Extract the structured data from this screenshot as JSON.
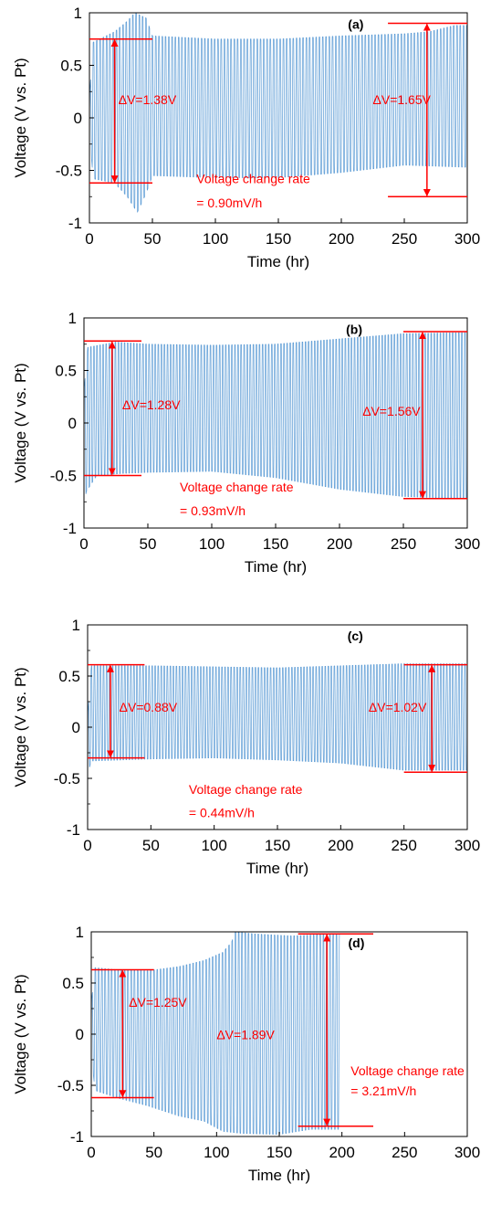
{
  "chart_data": [
    {
      "type": "line",
      "panel_label": "(a)",
      "xlabel": "Time (hr)",
      "ylabel": "Voltage (V vs. Pt)",
      "xlim": [
        0,
        300
      ],
      "ylim": [
        -1,
        1
      ],
      "xticks": [
        0,
        50,
        100,
        150,
        200,
        250,
        300
      ],
      "yticks": [
        "1",
        "0.5",
        "0",
        "-0.5",
        "-1"
      ],
      "series": [
        {
          "color": "#5b9bd5",
          "cycle_period_hr": 2.6,
          "t_end": 300,
          "upper_envelope": [
            [
              0,
              0.2
            ],
            [
              3,
              0.72
            ],
            [
              20,
              0.82
            ],
            [
              30,
              0.92
            ],
            [
              36,
              1.0
            ],
            [
              45,
              0.95
            ],
            [
              50,
              0.78
            ],
            [
              100,
              0.75
            ],
            [
              150,
              0.75
            ],
            [
              200,
              0.78
            ],
            [
              250,
              0.8
            ],
            [
              270,
              0.82
            ],
            [
              290,
              0.88
            ],
            [
              300,
              0.88
            ]
          ],
          "lower_envelope": [
            [
              0,
              -0.15
            ],
            [
              3,
              -0.58
            ],
            [
              20,
              -0.62
            ],
            [
              30,
              -0.75
            ],
            [
              38,
              -0.9
            ],
            [
              45,
              -0.72
            ],
            [
              50,
              -0.55
            ],
            [
              100,
              -0.57
            ],
            [
              150,
              -0.57
            ],
            [
              200,
              -0.52
            ],
            [
              250,
              -0.45
            ],
            [
              300,
              -0.47
            ]
          ]
        }
      ],
      "annotations": [
        {
          "text": "ΔV=1.38V",
          "x": 23,
          "y": 0.13
        },
        {
          "text": "ΔV=1.65V",
          "x": 225,
          "y": 0.13
        },
        {
          "text": "Voltage change rate",
          "x": 85,
          "y": -0.62
        },
        {
          "text": "= 0.90mV/h",
          "x": 85,
          "y": -0.85
        }
      ],
      "brackets": [
        {
          "x": 20,
          "top": 0.75,
          "bottom": -0.62,
          "line_x0": 0,
          "line_x1": 50
        },
        {
          "x": 268,
          "top": 0.9,
          "bottom": -0.75,
          "line_x0": 237,
          "line_x1": 300
        }
      ]
    },
    {
      "type": "line",
      "panel_label": "(b)",
      "xlabel": "Time (hr)",
      "ylabel": "Voltage (V vs. Pt)",
      "xlim": [
        0,
        300
      ],
      "ylim": [
        -1,
        1
      ],
      "xticks": [
        0,
        50,
        100,
        150,
        200,
        250,
        300
      ],
      "yticks": [
        "1",
        "0.5",
        "0",
        "-0.5",
        "-1"
      ],
      "series": [
        {
          "color": "#5b9bd5",
          "cycle_period_hr": 2.4,
          "t_end": 300,
          "upper_envelope": [
            [
              0,
              0.3
            ],
            [
              3,
              0.72
            ],
            [
              25,
              0.77
            ],
            [
              50,
              0.75
            ],
            [
              100,
              0.74
            ],
            [
              150,
              0.75
            ],
            [
              200,
              0.8
            ],
            [
              250,
              0.85
            ],
            [
              300,
              0.86
            ]
          ],
          "lower_envelope": [
            [
              0,
              -0.75
            ],
            [
              2,
              -0.65
            ],
            [
              10,
              -0.5
            ],
            [
              30,
              -0.48
            ],
            [
              50,
              -0.47
            ],
            [
              100,
              -0.46
            ],
            [
              150,
              -0.52
            ],
            [
              200,
              -0.63
            ],
            [
              250,
              -0.7
            ],
            [
              300,
              -0.72
            ]
          ]
        }
      ],
      "annotations": [
        {
          "text": "ΔV=1.28V",
          "x": 30,
          "y": 0.13
        },
        {
          "text": "ΔV=1.56V",
          "x": 218,
          "y": 0.07
        },
        {
          "text": "Voltage change rate",
          "x": 75,
          "y": -0.65
        },
        {
          "text": "= 0.93mV/h",
          "x": 75,
          "y": -0.88
        }
      ],
      "brackets": [
        {
          "x": 22,
          "top": 0.78,
          "bottom": -0.5,
          "line_x0": 0,
          "line_x1": 45
        },
        {
          "x": 265,
          "top": 0.87,
          "bottom": -0.72,
          "line_x0": 250,
          "line_x1": 300
        }
      ]
    },
    {
      "type": "line",
      "panel_label": "(c)",
      "xlabel": "Time (hr)",
      "ylabel": "Voltage (V vs. Pt)",
      "xlim": [
        0,
        300
      ],
      "ylim": [
        -1,
        1
      ],
      "xticks": [
        0,
        50,
        100,
        150,
        200,
        250,
        300
      ],
      "yticks": [
        "1",
        "0.5",
        "0",
        "-0.5",
        "-1"
      ],
      "series": [
        {
          "color": "#5b9bd5",
          "cycle_period_hr": 2.4,
          "t_end": 300,
          "upper_envelope": [
            [
              0,
              0.1
            ],
            [
              3,
              0.6
            ],
            [
              50,
              0.6
            ],
            [
              100,
              0.59
            ],
            [
              150,
              0.58
            ],
            [
              200,
              0.6
            ],
            [
              250,
              0.62
            ],
            [
              300,
              0.62
            ]
          ],
          "lower_envelope": [
            [
              0,
              -0.45
            ],
            [
              3,
              -0.33
            ],
            [
              50,
              -0.31
            ],
            [
              100,
              -0.3
            ],
            [
              150,
              -0.32
            ],
            [
              200,
              -0.35
            ],
            [
              250,
              -0.42
            ],
            [
              300,
              -0.42
            ]
          ]
        }
      ],
      "annotations": [
        {
          "text": "ΔV=0.88V",
          "x": 25,
          "y": 0.15
        },
        {
          "text": "ΔV=1.02V",
          "x": 222,
          "y": 0.15
        },
        {
          "text": "Voltage change rate",
          "x": 80,
          "y": -0.65
        },
        {
          "text": "= 0.44mV/h",
          "x": 80,
          "y": -0.88
        }
      ],
      "brackets": [
        {
          "x": 18,
          "top": 0.61,
          "bottom": -0.3,
          "line_x0": 0,
          "line_x1": 45
        },
        {
          "x": 272,
          "top": 0.61,
          "bottom": -0.44,
          "line_x0": 250,
          "line_x1": 300
        }
      ]
    },
    {
      "type": "line",
      "panel_label": "(d)",
      "xlabel": "Time (hr)",
      "ylabel": "Voltage (V vs. Pt)",
      "xlim": [
        0,
        300
      ],
      "ylim": [
        -1,
        1
      ],
      "xticks": [
        0,
        50,
        100,
        150,
        200,
        250,
        300
      ],
      "yticks": [
        "1",
        "0.5",
        "0",
        "-0.5",
        "-1"
      ],
      "series": [
        {
          "color": "#5b9bd5",
          "cycle_period_hr": 2.6,
          "t_end": 198,
          "upper_envelope": [
            [
              0,
              0.3
            ],
            [
              3,
              0.65
            ],
            [
              20,
              0.63
            ],
            [
              45,
              0.62
            ],
            [
              70,
              0.66
            ],
            [
              90,
              0.72
            ],
            [
              105,
              0.8
            ],
            [
              112,
              0.9
            ],
            [
              115,
              1.0
            ],
            [
              130,
              0.98
            ],
            [
              160,
              0.96
            ],
            [
              198,
              0.98
            ]
          ],
          "lower_envelope": [
            [
              0,
              -0.2
            ],
            [
              3,
              -0.55
            ],
            [
              20,
              -0.62
            ],
            [
              45,
              -0.7
            ],
            [
              70,
              -0.8
            ],
            [
              90,
              -0.85
            ],
            [
              105,
              -0.95
            ],
            [
              120,
              -0.97
            ],
            [
              150,
              -0.98
            ],
            [
              175,
              -0.93
            ],
            [
              198,
              -0.93
            ]
          ]
        }
      ],
      "annotations": [
        {
          "text": "ΔV=1.25V",
          "x": 30,
          "y": 0.27
        },
        {
          "text": "ΔV=1.89V",
          "x": 100,
          "y": -0.05
        },
        {
          "text": "Voltage change rate",
          "x": 207,
          "y": -0.4
        },
        {
          "text": "= 3.21mV/h",
          "x": 207,
          "y": -0.6
        }
      ],
      "brackets": [
        {
          "x": 25,
          "top": 0.63,
          "bottom": -0.62,
          "line_x0": 0,
          "line_x1": 50
        },
        {
          "x": 188,
          "top": 0.98,
          "bottom": -0.9,
          "line_x0": 165,
          "line_x1": 225
        }
      ]
    }
  ]
}
